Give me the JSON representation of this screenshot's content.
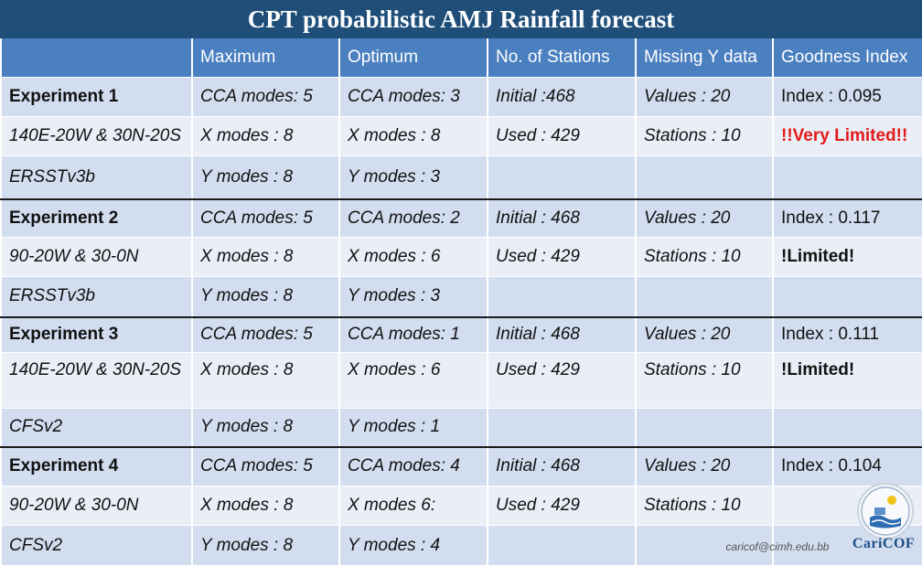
{
  "title": "CPT probabilistic AMJ Rainfall forecast",
  "columns": [
    "",
    "Maximum",
    "Optimum",
    "No. of Stations",
    "Missing Y data",
    "Goodness Index"
  ],
  "rows": [
    {
      "cells": [
        "Experiment 1",
        "CCA modes: 5",
        "CCA modes: 3",
        "Initial :468",
        "Values : 20",
        "Index : 0.095"
      ]
    },
    {
      "cells": [
        "140E-20W & 30N-20S",
        "X modes : 8",
        "X modes : 8",
        "Used : 429",
        "Stations : 10",
        "!!Very Limited!!"
      ]
    },
    {
      "cells": [
        "ERSSTv3b",
        "Y modes : 8",
        "Y modes : 3",
        "",
        "",
        ""
      ]
    },
    {
      "cells": [
        "Experiment 2",
        "CCA modes: 5",
        "CCA modes: 2",
        "Initial : 468",
        "Values : 20",
        "Index : 0.117"
      ]
    },
    {
      "cells": [
        "90-20W & 30-0N",
        "X modes : 8",
        "X modes : 6",
        "Used : 429",
        "Stations : 10",
        "!Limited!"
      ]
    },
    {
      "cells": [
        "ERSSTv3b",
        "Y modes : 8",
        "Y modes : 3",
        "",
        "",
        ""
      ]
    },
    {
      "cells": [
        "Experiment 3",
        "CCA modes: 5",
        "CCA modes: 1",
        "Initial : 468",
        "Values : 20",
        "Index : 0.111"
      ]
    },
    {
      "cells": [
        "140E-20W & 30N-20S",
        "X modes : 8",
        "X modes : 6",
        "Used : 429",
        "Stations : 10",
        "!Limited!"
      ]
    },
    {
      "cells": [
        "CFSv2",
        "Y modes : 8",
        "Y modes : 1",
        "",
        "",
        ""
      ]
    },
    {
      "cells": [
        "Experiment 4",
        "CCA modes: 5",
        "CCA modes: 4",
        "Initial : 468",
        "Values : 20",
        "Index : 0.104"
      ]
    },
    {
      "cells": [
        "90-20W & 30-0N",
        "X modes : 8",
        "X modes 6:",
        "Used : 429",
        "Stations : 10",
        ""
      ]
    },
    {
      "cells": [
        "CFSv2",
        "Y modes : 8",
        "Y modes : 4",
        "",
        "",
        ""
      ]
    }
  ],
  "footer": {
    "email": "caricof@cimh.edu.bb",
    "logo_text": "CariCOF",
    "logo_icon": "caricof-globe-logo-icon"
  },
  "colors": {
    "title_bg": "#1f4e79",
    "header_bg": "#4a7fc0",
    "row_dark": "#d2ddef",
    "row_light": "#e9eef7",
    "warning": "#e31b1b"
  }
}
